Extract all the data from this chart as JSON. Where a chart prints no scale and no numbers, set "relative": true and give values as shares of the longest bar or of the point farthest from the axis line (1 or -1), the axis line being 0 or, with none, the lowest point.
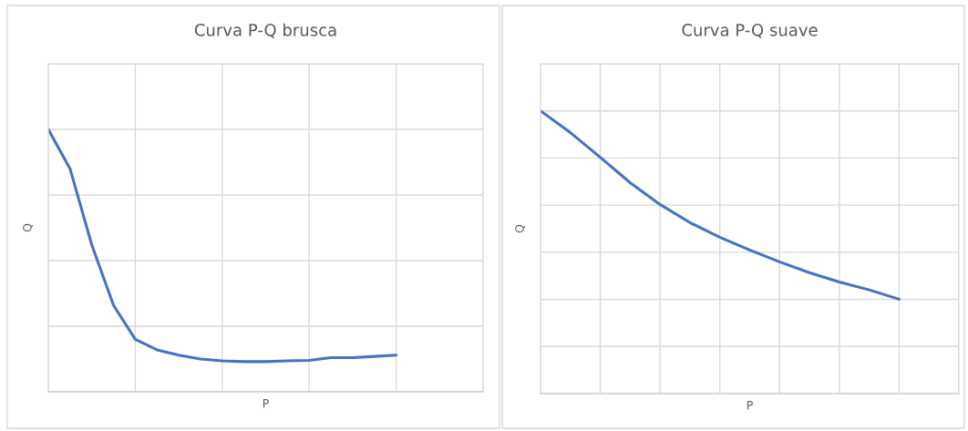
{
  "chart_data": [
    {
      "type": "line",
      "title": "Curva P-Q brusca",
      "xlabel": "P",
      "ylabel": "Q",
      "relative": true,
      "grid": true,
      "color": "#4472c4",
      "categories": [
        null,
        null,
        null,
        null,
        null,
        null,
        null,
        null,
        null,
        null,
        null,
        null,
        null,
        null,
        null,
        null,
        null,
        null,
        null,
        null,
        null
      ],
      "values": [
        1.0,
        0.85,
        0.56,
        0.33,
        0.2,
        0.16,
        0.14,
        0.125,
        0.118,
        0.115,
        0.115,
        0.118,
        0.12,
        0.13,
        0.13,
        0.135,
        0.14,
        null,
        null,
        null,
        null
      ]
    },
    {
      "type": "line",
      "title": "Curva P-Q suave",
      "xlabel": "P",
      "ylabel": "Q",
      "relative": true,
      "grid": true,
      "color": "#4472c4",
      "categories": [
        null,
        null,
        null,
        null,
        null,
        null,
        null,
        null,
        null,
        null,
        null,
        null,
        null,
        null,
        null
      ],
      "values": [
        1.0,
        0.923,
        0.836,
        0.746,
        0.669,
        0.605,
        0.553,
        0.508,
        0.466,
        0.428,
        0.395,
        0.367,
        0.334,
        null,
        null
      ]
    }
  ]
}
